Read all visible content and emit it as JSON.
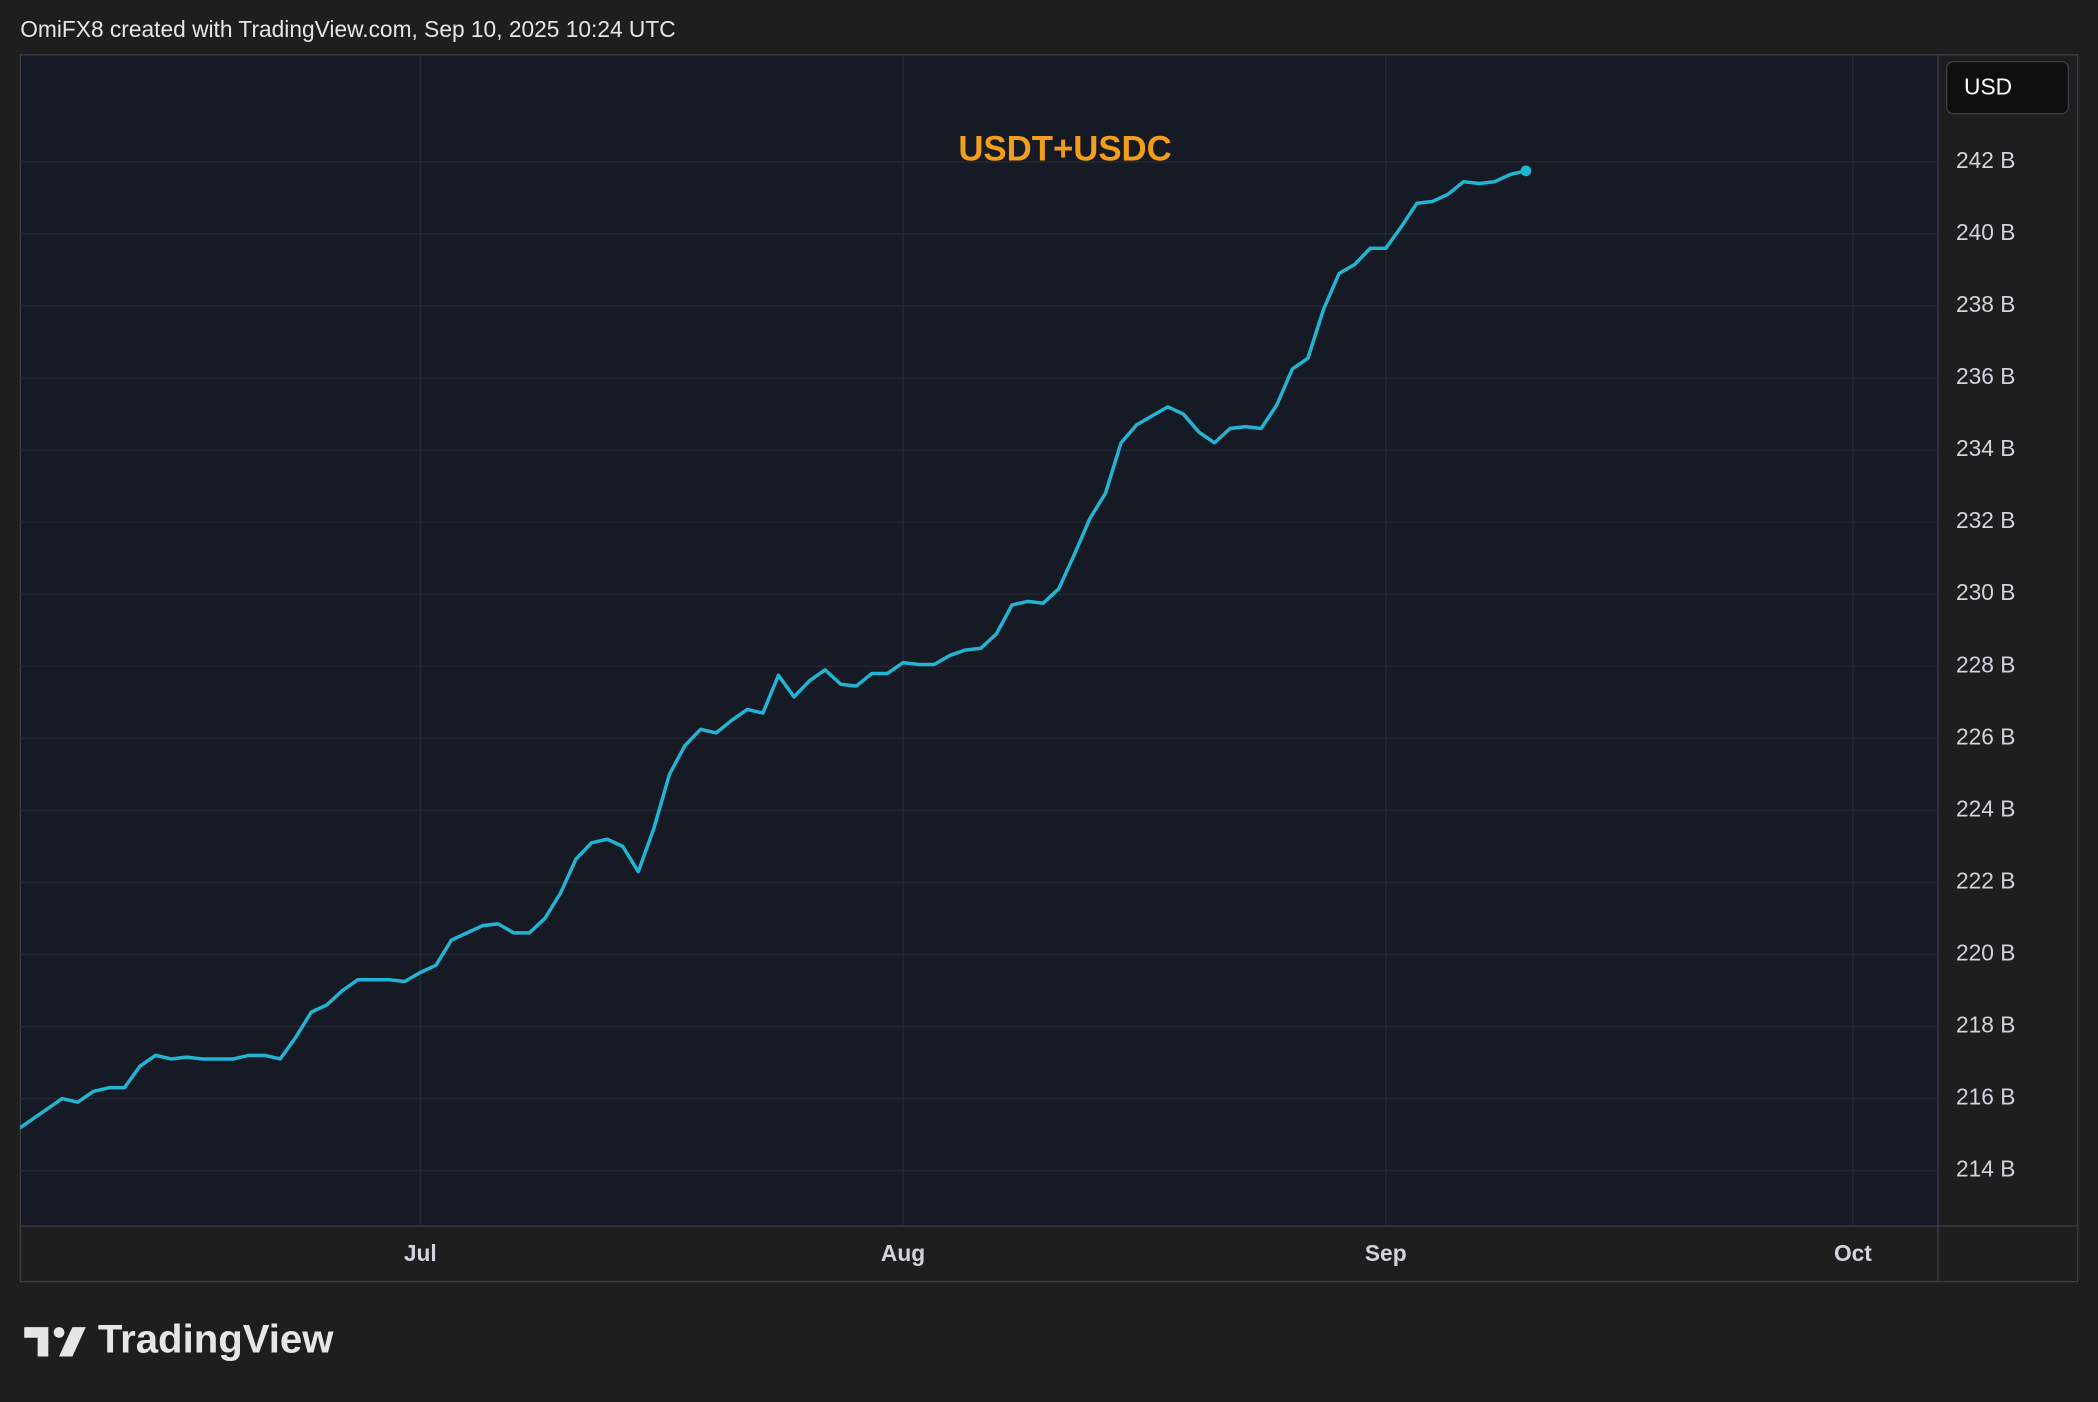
{
  "header": "OmiFX8 created with TradingView.com, Sep 10, 2025 10:24 UTC",
  "currency": "USD",
  "brand": "TradingView",
  "chart_data": {
    "type": "line",
    "categories": [
      null,
      null,
      null,
      null,
      null,
      null,
      null,
      null,
      null,
      null,
      null,
      null,
      null,
      null,
      null,
      null,
      null,
      null,
      null,
      null,
      null,
      null,
      null,
      null,
      null,
      null,
      "Jul",
      null,
      null,
      null,
      null,
      null,
      null,
      null,
      null,
      null,
      null,
      null,
      null,
      null,
      null,
      null,
      null,
      null,
      null,
      null,
      null,
      null,
      null,
      null,
      null,
      null,
      null,
      null,
      null,
      null,
      null,
      "Aug",
      null,
      null,
      null,
      null,
      null,
      null,
      null,
      null,
      null,
      null,
      null,
      null,
      null,
      null,
      null,
      null,
      null,
      null,
      null,
      null,
      null,
      null,
      null,
      null,
      null,
      null,
      null,
      null,
      null,
      null,
      "Sep",
      null,
      null,
      null,
      null,
      null,
      null,
      null,
      null,
      null,
      null,
      null,
      null,
      null,
      null,
      null,
      null,
      null,
      null,
      null,
      null,
      null,
      null,
      null,
      null,
      null,
      null,
      null,
      null,
      null,
      "Oct",
      null,
      null,
      null,
      null
    ],
    "series": [
      {
        "name": "USDT+USDC",
        "color": "#22b5d3",
        "values": [
          215.1,
          215.4,
          215.7,
          216.0,
          215.9,
          216.2,
          216.3,
          216.3,
          216.9,
          217.2,
          217.1,
          217.15,
          217.1,
          217.1,
          217.1,
          217.2,
          217.2,
          217.1,
          217.7,
          218.4,
          218.6,
          219.0,
          219.3,
          219.3,
          219.3,
          219.25,
          219.5,
          219.7,
          220.4,
          220.6,
          220.8,
          220.85,
          220.6,
          220.6,
          221.0,
          221.7,
          222.65,
          223.1,
          223.2,
          223.0,
          222.3,
          223.5,
          225.0,
          225.8,
          226.25,
          226.15,
          226.5,
          226.8,
          226.7,
          227.75,
          227.15,
          227.6,
          227.9,
          227.5,
          227.45,
          227.8,
          227.8,
          228.1,
          228.05,
          228.05,
          228.3,
          228.45,
          228.5,
          228.9,
          229.7,
          229.8,
          229.75,
          230.15,
          231.1,
          232.1,
          232.8,
          234.2,
          234.7,
          234.95,
          235.2,
          235.0,
          234.5,
          234.2,
          234.6,
          234.65,
          234.6,
          235.25,
          236.25,
          236.55,
          237.9,
          238.9,
          239.15,
          239.6,
          239.6,
          240.2,
          240.85,
          240.9,
          241.1,
          241.45,
          241.4,
          241.45,
          241.65,
          241.75,
          null,
          null,
          null,
          null,
          null,
          null,
          null,
          null,
          null,
          null,
          null,
          null,
          null,
          null,
          null,
          null,
          null,
          null,
          null,
          null,
          null,
          null,
          null,
          null,
          null
        ]
      }
    ],
    "ylim": [
      212.48,
      244.97
    ],
    "yticks": [
      {
        "value": 214,
        "label": "214 B"
      },
      {
        "value": 216,
        "label": "216 B"
      },
      {
        "value": 218,
        "label": "218 B"
      },
      {
        "value": 220,
        "label": "220 B"
      },
      {
        "value": 222,
        "label": "222 B"
      },
      {
        "value": 224,
        "label": "224 B"
      },
      {
        "value": 226,
        "label": "226 B"
      },
      {
        "value": 228,
        "label": "228 B"
      },
      {
        "value": 230,
        "label": "230 B"
      },
      {
        "value": 232,
        "label": "232 B"
      },
      {
        "value": 234,
        "label": "234 B"
      },
      {
        "value": 236,
        "label": "236 B"
      },
      {
        "value": 238,
        "label": "238 B"
      },
      {
        "value": 240,
        "label": "240 B"
      },
      {
        "value": 242,
        "label": "242 B"
      }
    ],
    "grid": true
  }
}
